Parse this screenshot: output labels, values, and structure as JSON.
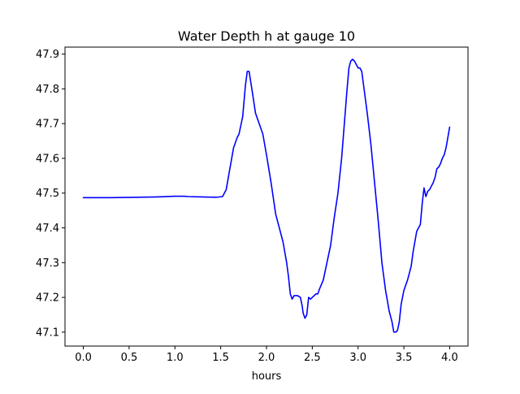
{
  "chart_data": {
    "type": "line",
    "title": "Water Depth h at gauge 10",
    "xlabel": "hours",
    "ylabel": "",
    "xlim": [
      -0.2,
      4.2
    ],
    "ylim": [
      47.06,
      47.92
    ],
    "xticks": [
      0.0,
      0.5,
      1.0,
      1.5,
      2.0,
      2.5,
      3.0,
      3.5,
      4.0
    ],
    "xtick_labels": [
      "0.0",
      "0.5",
      "1.0",
      "1.5",
      "2.0",
      "2.5",
      "3.0",
      "3.5",
      "4.0"
    ],
    "yticks": [
      47.1,
      47.2,
      47.3,
      47.4,
      47.5,
      47.6,
      47.7,
      47.8,
      47.9
    ],
    "ytick_labels": [
      "47.1",
      "47.2",
      "47.3",
      "47.4",
      "47.5",
      "47.6",
      "47.7",
      "47.8",
      "47.9"
    ],
    "grid": false,
    "series": [
      {
        "color": "#0000ff",
        "x": [
          0.0,
          0.3,
          0.6,
          0.8,
          1.0,
          1.1,
          1.15,
          1.3,
          1.45,
          1.52,
          1.56,
          1.6,
          1.64,
          1.68,
          1.7,
          1.74,
          1.77,
          1.79,
          1.81,
          1.84,
          1.88,
          1.92,
          1.96,
          2.0,
          2.05,
          2.1,
          2.15,
          2.18,
          2.2,
          2.22,
          2.24,
          2.26,
          2.28,
          2.3,
          2.32,
          2.34,
          2.37,
          2.39,
          2.4,
          2.42,
          2.44,
          2.46,
          2.48,
          2.5,
          2.52,
          2.54,
          2.56,
          2.58,
          2.62,
          2.66,
          2.7,
          2.74,
          2.78,
          2.82,
          2.85,
          2.88,
          2.9,
          2.92,
          2.94,
          2.96,
          2.98,
          3.0,
          3.02,
          3.04,
          3.06,
          3.08,
          3.1,
          3.14,
          3.18,
          3.22,
          3.26,
          3.3,
          3.34,
          3.37,
          3.39,
          3.41,
          3.43,
          3.45,
          3.47,
          3.5,
          3.54,
          3.58,
          3.6,
          3.62,
          3.64,
          3.66,
          3.68,
          3.7,
          3.72,
          3.74,
          3.76,
          3.78,
          3.8,
          3.82,
          3.84,
          3.86,
          3.88,
          3.9,
          3.92,
          3.94,
          3.96,
          3.98,
          4.0
        ],
        "y": [
          47.487,
          47.487,
          47.488,
          47.489,
          47.491,
          47.491,
          47.49,
          47.489,
          47.488,
          47.49,
          47.51,
          47.57,
          47.63,
          47.66,
          47.67,
          47.72,
          47.81,
          47.85,
          47.85,
          47.8,
          47.73,
          47.7,
          47.67,
          47.61,
          47.53,
          47.44,
          47.39,
          47.36,
          47.33,
          47.3,
          47.26,
          47.21,
          47.195,
          47.205,
          47.205,
          47.205,
          47.2,
          47.175,
          47.155,
          47.14,
          47.15,
          47.2,
          47.195,
          47.2,
          47.205,
          47.21,
          47.21,
          47.225,
          47.25,
          47.3,
          47.35,
          47.43,
          47.5,
          47.6,
          47.7,
          47.8,
          47.86,
          47.88,
          47.885,
          47.88,
          47.87,
          47.86,
          47.86,
          47.85,
          47.81,
          47.77,
          47.73,
          47.64,
          47.53,
          47.42,
          47.3,
          47.22,
          47.16,
          47.13,
          47.1,
          47.1,
          47.105,
          47.13,
          47.18,
          47.22,
          47.25,
          47.29,
          47.33,
          47.36,
          47.39,
          47.4,
          47.41,
          47.47,
          47.515,
          47.49,
          47.505,
          47.51,
          47.52,
          47.53,
          47.545,
          47.57,
          47.575,
          47.585,
          47.6,
          47.61,
          47.63,
          47.66,
          47.69
        ]
      }
    ]
  }
}
